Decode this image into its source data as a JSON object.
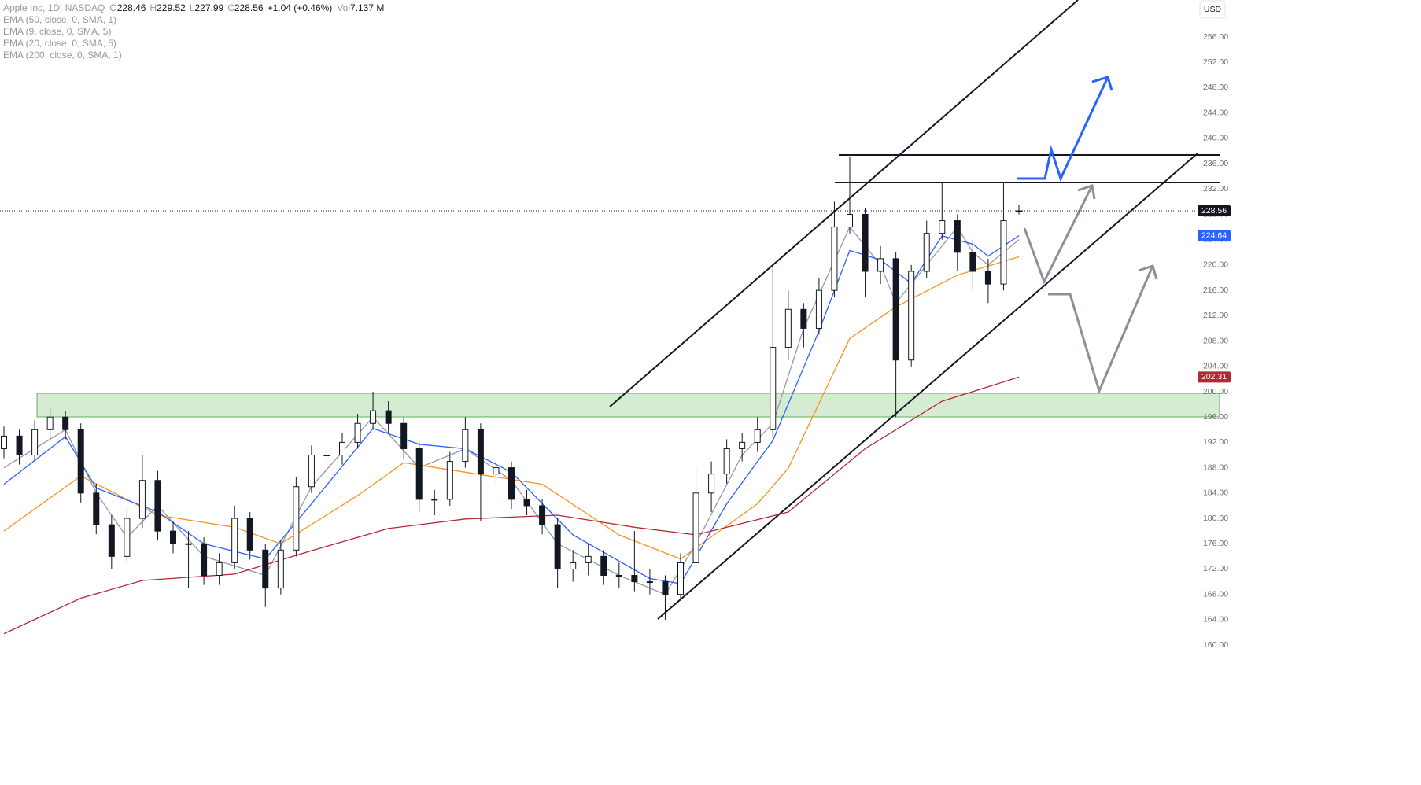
{
  "chart_data": {
    "type": "candlestick",
    "symbol": "Apple Inc, 1D, NASDAQ",
    "ohlc_letters": [
      "O",
      "H",
      "L",
      "C"
    ],
    "change": "+1.04 (+0.46%)",
    "volume_letter": "Vol",
    "volume": "7.137 M",
    "currency": "USD",
    "up_color": "#ffffff",
    "down_color": "#131722",
    "candles": [
      [
        191,
        194.5,
        189.5,
        193
      ],
      [
        193,
        194,
        188.5,
        190
      ],
      [
        190,
        195.5,
        189,
        194
      ],
      [
        194,
        197.5,
        192.5,
        196
      ],
      [
        196,
        197,
        192.5,
        194
      ],
      [
        194,
        195,
        182.5,
        184
      ],
      [
        184,
        185.5,
        177.5,
        179
      ],
      [
        179,
        180.5,
        172,
        174
      ],
      [
        174,
        181.5,
        173,
        180
      ],
      [
        180,
        190,
        178.5,
        186
      ],
      [
        186,
        187.5,
        176.5,
        178
      ],
      [
        178,
        179.5,
        174.5,
        176
      ],
      [
        176,
        178,
        169,
        176
      ],
      [
        176,
        177,
        169.5,
        171
      ],
      [
        171,
        174.5,
        169.5,
        173
      ],
      [
        173,
        182,
        172,
        180
      ],
      [
        180,
        181,
        173.5,
        175
      ],
      [
        175,
        176,
        166,
        169
      ],
      [
        169,
        176.5,
        168,
        175
      ],
      [
        175,
        186.5,
        174,
        185
      ],
      [
        185,
        191.5,
        184,
        190
      ],
      [
        190,
        191.5,
        188.5,
        190
      ],
      [
        190,
        193.5,
        188.5,
        192
      ],
      [
        192,
        196.5,
        191,
        195
      ],
      [
        195,
        200,
        194,
        197
      ],
      [
        197,
        198.5,
        193.5,
        195
      ],
      [
        195,
        196,
        189.5,
        191
      ],
      [
        191,
        192,
        181,
        183
      ],
      [
        183,
        184.5,
        180.5,
        183
      ],
      [
        183,
        190.5,
        182,
        189
      ],
      [
        189,
        196,
        188,
        194
      ],
      [
        194,
        195,
        179.5,
        187
      ],
      [
        187,
        189.5,
        185.5,
        188
      ],
      [
        188,
        189,
        181.5,
        183
      ],
      [
        183,
        184.5,
        180.5,
        182
      ],
      [
        182,
        183,
        177.5,
        179
      ],
      [
        179,
        180,
        169,
        172
      ],
      [
        172,
        175,
        170,
        173
      ],
      [
        173,
        176,
        171,
        174
      ],
      [
        174,
        175,
        169.5,
        171
      ],
      [
        171,
        173,
        169,
        171
      ],
      [
        171,
        178,
        168.5,
        170
      ],
      [
        170,
        172,
        168,
        170
      ],
      [
        170,
        171,
        164,
        168
      ],
      [
        168,
        174.5,
        167,
        173
      ],
      [
        173,
        188,
        172,
        184
      ],
      [
        184,
        189,
        181,
        187
      ],
      [
        187,
        192.5,
        185.5,
        191
      ],
      [
        191,
        193.5,
        189,
        192
      ],
      [
        192,
        196,
        190.5,
        194
      ],
      [
        194,
        220,
        193,
        207
      ],
      [
        207,
        216,
        205,
        213
      ],
      [
        213,
        214,
        207,
        210
      ],
      [
        210,
        218,
        209,
        216
      ],
      [
        216,
        230,
        215,
        226
      ],
      [
        226,
        237,
        225,
        228
      ],
      [
        228,
        229,
        215,
        219
      ],
      [
        219,
        223,
        217,
        221
      ],
      [
        221,
        222,
        196,
        205
      ],
      [
        205,
        220,
        204,
        219
      ],
      [
        219,
        227,
        218,
        225
      ],
      [
        225,
        233,
        224,
        227
      ],
      [
        227,
        228,
        219,
        222
      ],
      [
        222,
        224,
        216,
        219
      ],
      [
        219,
        221,
        214,
        217
      ],
      [
        217,
        233,
        216,
        227
      ],
      [
        228.46,
        229.52,
        227.99,
        228.56
      ]
    ],
    "series": [
      {
        "name": "EMA (50, close, 0, SMA, 1)",
        "color": "#f7931e",
        "x": [
          0,
          5,
          10,
          15,
          18,
          23,
          26,
          30,
          35,
          40,
          44,
          49,
          51,
          55,
          58,
          62,
          66
        ],
        "values": [
          178,
          186.7,
          180.5,
          178.6,
          176,
          183.6,
          188.8,
          187.3,
          185.4,
          177.4,
          173.6,
          182.3,
          187.9,
          208.4,
          213.4,
          218.4,
          221.3
        ]
      },
      {
        "name": "EMA (9, close, 0, SMA, 5)",
        "color": "#9598a1",
        "x": [
          0,
          4,
          6,
          8,
          10,
          13,
          17,
          20,
          24,
          27,
          30,
          33,
          36,
          40,
          43,
          45,
          48,
          50,
          52,
          55,
          57,
          58,
          60,
          62,
          63,
          64,
          66
        ],
        "values": [
          188,
          194,
          184,
          177,
          182,
          174,
          171,
          185,
          196,
          188,
          191,
          186,
          176,
          171,
          168,
          176,
          190,
          195,
          210,
          226,
          220,
          214,
          220,
          226,
          222,
          220,
          224
        ]
      },
      {
        "name": "EMA (20, close, 0, SMA, 5)",
        "color": "#2962ff",
        "x": [
          0,
          4,
          6,
          10,
          13,
          17,
          20,
          24,
          27,
          30,
          33,
          37,
          42,
          44,
          47,
          50,
          53,
          55,
          57,
          59,
          61,
          63,
          64,
          66
        ],
        "values": [
          185.4,
          192.9,
          184.8,
          181,
          176,
          173.6,
          182.3,
          194.2,
          191.7,
          191,
          187.3,
          177.4,
          170.5,
          169.7,
          182.3,
          192.3,
          209.6,
          222.3,
          220.8,
          217.1,
          224.6,
          223.3,
          221.4,
          224.64
        ]
      },
      {
        "name": "EMA (200, close, 0, SMA, 1)",
        "color": "#b22833",
        "x": [
          0,
          5,
          9,
          15,
          20,
          25,
          30,
          36,
          41,
          45,
          51,
          56,
          61,
          66
        ],
        "values": [
          161.8,
          167.4,
          170.2,
          171.2,
          174.9,
          178.4,
          179.9,
          180.5,
          178.6,
          177.4,
          181,
          191,
          198.5,
          202.31
        ]
      }
    ],
    "ylim": [
      154.3,
      261.84
    ],
    "yticks": [
      {
        "value": 256,
        "label": "256.00"
      },
      {
        "value": 252,
        "label": "252.00"
      },
      {
        "value": 248,
        "label": "248.00"
      },
      {
        "value": 244,
        "label": "244.00"
      },
      {
        "value": 240,
        "label": "240.00"
      },
      {
        "value": 236,
        "label": "236.00"
      },
      {
        "value": 232,
        "label": "232.00"
      },
      {
        "value": 228,
        "label": "228.00"
      },
      {
        "value": 224,
        "label": "224.00"
      },
      {
        "value": 220,
        "label": "220.00"
      },
      {
        "value": 216,
        "label": "216.00"
      },
      {
        "value": 212,
        "label": "212.00"
      },
      {
        "value": 208,
        "label": "208.00"
      },
      {
        "value": 204,
        "label": "204.00"
      },
      {
        "value": 200,
        "label": "200.00"
      },
      {
        "value": 196,
        "label": "196.00"
      },
      {
        "value": 192,
        "label": "192.00"
      },
      {
        "value": 188,
        "label": "188.00"
      },
      {
        "value": 184,
        "label": "184.00"
      },
      {
        "value": 180,
        "label": "180.00"
      },
      {
        "value": 176,
        "label": "176.00"
      },
      {
        "value": 172,
        "label": "172.00"
      },
      {
        "value": 168,
        "label": "168.00"
      },
      {
        "value": 164,
        "label": "164.00"
      },
      {
        "value": 160,
        "label": "160.00"
      }
    ],
    "badge_series": [
      2,
      3
    ]
  }
}
